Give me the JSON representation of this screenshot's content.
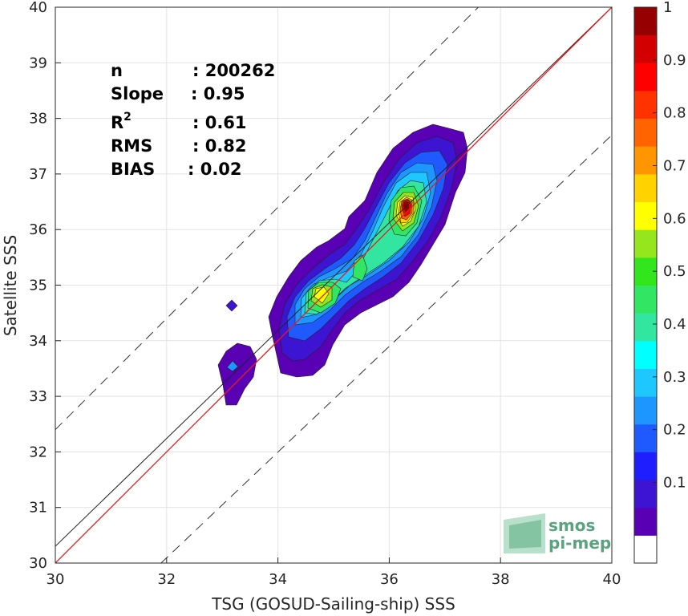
{
  "chart_data": {
    "type": "heatmap",
    "subtype": "filled-contour density scatter",
    "xlabel": "TSG (GOSUD-Sailing-ship) SSS",
    "ylabel": "Satellite SSS",
    "xlim": [
      30,
      40
    ],
    "ylim": [
      30,
      40
    ],
    "xticks": [
      30,
      32,
      34,
      36,
      38,
      40
    ],
    "yticks": [
      30,
      31,
      32,
      33,
      34,
      35,
      36,
      37,
      38,
      39,
      40
    ],
    "grid": true,
    "stats": [
      {
        "label": "n",
        "value": ": 200262"
      },
      {
        "label": "Slope",
        "value": ": 0.95"
      },
      {
        "label": "R",
        "sup": "2",
        "value": ": 0.61"
      },
      {
        "label": "RMS",
        "value": ": 0.82"
      },
      {
        "label": "BIAS",
        "value": ": 0.02"
      }
    ],
    "lines": {
      "one_to_one": {
        "color": "#000000",
        "x": [
          30,
          40
        ],
        "y": [
          30,
          40
        ]
      },
      "regression": {
        "color": "#e8191b",
        "slope": 0.95,
        "intercept": 1.89
      },
      "band_upper": {
        "style": "dashed",
        "x": [
          30,
          40
        ],
        "y": [
          32.4,
          42.4
        ]
      },
      "band_lower": {
        "style": "dashed",
        "x": [
          31.9,
          40
        ],
        "y": [
          30,
          37.7
        ]
      }
    },
    "density_clusters": [
      {
        "cx": 36.3,
        "cy": 36.3,
        "rx": 0.3,
        "ry": 0.5,
        "peak": 1.0
      },
      {
        "cx": 34.7,
        "cy": 34.7,
        "rx": 0.2,
        "ry": 0.32,
        "peak": 0.65
      },
      {
        "cx": 35.4,
        "cy": 35.2,
        "rx": 0.12,
        "ry": 0.28,
        "peak": 0.5
      },
      {
        "cx": 33.2,
        "cy": 33.5,
        "rx": 0.15,
        "ry": 0.2,
        "peak": 0.3
      }
    ],
    "colorbar": {
      "ticks": [
        0.1,
        0.2,
        0.3,
        0.4,
        0.5,
        0.6,
        0.7,
        0.8,
        0.9,
        1
      ],
      "colors": [
        "#ffffff",
        "#5a00b4",
        "#3c14d2",
        "#1e1eff",
        "#1e5aff",
        "#1e96ff",
        "#1ec8ff",
        "#00ffff",
        "#32e6a0",
        "#32e664",
        "#32e61e",
        "#96e61e",
        "#ffff00",
        "#ffd200",
        "#ff9600",
        "#ff6400",
        "#ff3200",
        "#ff0000",
        "#d20000",
        "#960000"
      ]
    }
  },
  "watermark": {
    "line1": "smos",
    "line2": "pi-mep"
  }
}
